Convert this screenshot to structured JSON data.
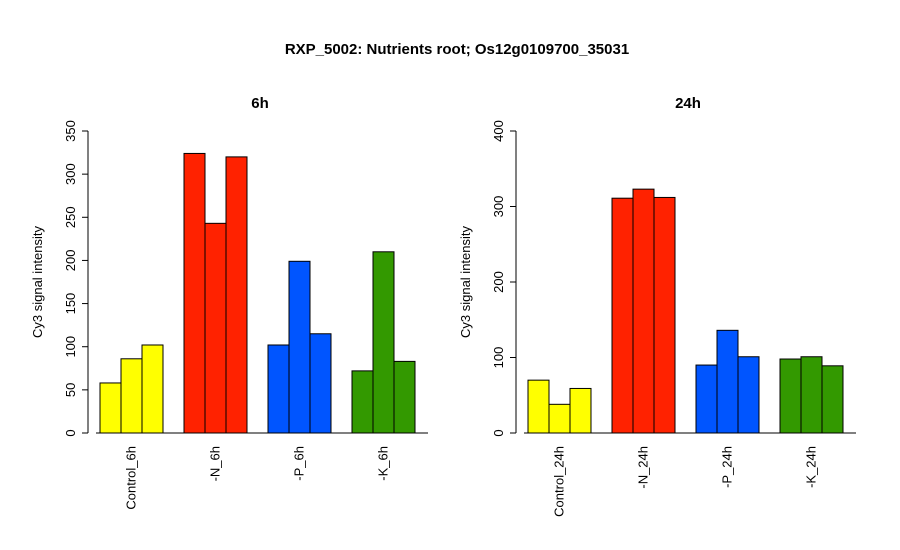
{
  "main_title": "RXP_5002: Nutrients root; Os12g0109700_35031",
  "chart_data": [
    {
      "type": "bar",
      "title": "6h",
      "ylabel": "Cy3 signal intensity",
      "ylim": [
        0,
        350
      ],
      "yticks": [
        0,
        50,
        100,
        150,
        200,
        250,
        300,
        350
      ],
      "grid": false,
      "legend": "none",
      "groups": [
        {
          "label": "Control_6h",
          "color": "#ffff00",
          "values": [
            58,
            86,
            102
          ]
        },
        {
          "label": "-N_6h",
          "color": "#ff2200",
          "values": [
            324,
            243,
            320
          ]
        },
        {
          "label": "-P_6h",
          "color": "#0055ff",
          "values": [
            102,
            199,
            115
          ]
        },
        {
          "label": "-K_6h",
          "color": "#339900",
          "values": [
            72,
            210,
            83
          ]
        }
      ]
    },
    {
      "type": "bar",
      "title": "24h",
      "ylabel": "Cy3 signal intensity",
      "ylim": [
        0,
        400
      ],
      "yticks": [
        0,
        100,
        200,
        300,
        400
      ],
      "grid": false,
      "legend": "none",
      "groups": [
        {
          "label": "Control_24h",
          "color": "#ffff00",
          "values": [
            70,
            38,
            59
          ]
        },
        {
          "label": "-N_24h",
          "color": "#ff2200",
          "values": [
            311,
            323,
            312
          ]
        },
        {
          "label": "-P_24h",
          "color": "#0055ff",
          "values": [
            90,
            136,
            101
          ]
        },
        {
          "label": "-K_24h",
          "color": "#339900",
          "values": [
            98,
            101,
            89
          ]
        }
      ]
    }
  ]
}
